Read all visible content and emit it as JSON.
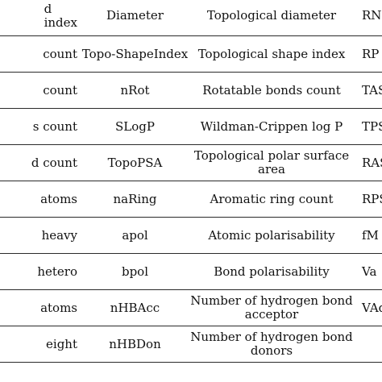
{
  "table": {
    "rows": [
      {
        "col1": [
          "d",
          "index"
        ],
        "col2": "Diameter",
        "col3": "Topological diameter",
        "col4": "RN"
      },
      {
        "col1": [
          "count"
        ],
        "col2": "Topo-ShapeIndex",
        "col3": "Topological shape index",
        "col4": "RP"
      },
      {
        "col1": [
          "count"
        ],
        "col2": "nRot",
        "col3": "Rotatable bonds count",
        "col4": "TAS"
      },
      {
        "col1": [
          "s count"
        ],
        "col2": "SLogP",
        "col3": "Wildman-Crippen log P",
        "col4": "TPS"
      },
      {
        "col1": [
          "d count"
        ],
        "col2": "TopoPSA",
        "col3": "Topological polar surface area",
        "col4": "RAS"
      },
      {
        "col1": [
          "atoms"
        ],
        "col2": "naRing",
        "col3": "Aromatic ring count",
        "col4": "RPS"
      },
      {
        "col1": [
          "heavy"
        ],
        "col2": "apol",
        "col3": "Atomic polarisability",
        "col4": "fM"
      },
      {
        "col1": [
          "hetero"
        ],
        "col2": "bpol",
        "col3": "Bond polarisability",
        "col4": "Va"
      },
      {
        "col1": [
          "atoms"
        ],
        "col2": "nHBAcc",
        "col3": "Number of hydrogen bond acceptor",
        "col4": "VAdj"
      },
      {
        "col1": [
          "eight"
        ],
        "col2": "nHBDon",
        "col3": "Number of hydrogen bond donors",
        "col4": ""
      }
    ]
  }
}
